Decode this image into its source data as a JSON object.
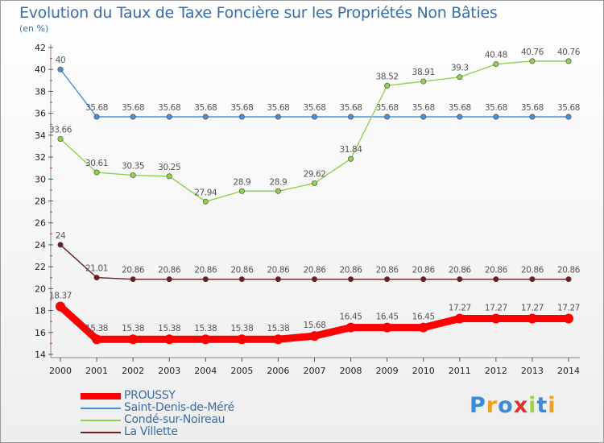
{
  "chart_data": {
    "type": "line",
    "title": "Evolution du Taux de Taxe Foncière sur les Propriétés Non Bâties",
    "ylabel": "(en %)",
    "xlabel": "",
    "x": [
      "2000",
      "2001",
      "2002",
      "2003",
      "2004",
      "2005",
      "2006",
      "2007",
      "2008",
      "2009",
      "2010",
      "2011",
      "2012",
      "2013",
      "2014"
    ],
    "ylim": [
      14,
      42
    ],
    "yticks": [
      "14",
      "16",
      "18",
      "20",
      "22",
      "24",
      "26",
      "28",
      "30",
      "32",
      "34",
      "36",
      "38",
      "40",
      "42"
    ],
    "grid": false,
    "legend_position": "bottom-left",
    "series": [
      {
        "name": "PROUSSY",
        "color": "#ff0000",
        "values": [
          18.37,
          15.38,
          15.38,
          15.38,
          15.38,
          15.38,
          15.38,
          15.68,
          16.45,
          16.45,
          16.45,
          17.27,
          17.27,
          17.27,
          17.27
        ],
        "labels": [
          "18.37",
          "15.38",
          "15.38",
          "15.38",
          "15.38",
          "15.38",
          "15.38",
          "15.68",
          "16.45",
          "16.45",
          "16.45",
          "17.27",
          "17.27",
          "17.27",
          "17.27"
        ]
      },
      {
        "name": "Saint-Denis-de-Méré",
        "color": "#4a90d9",
        "values": [
          40,
          35.68,
          35.68,
          35.68,
          35.68,
          35.68,
          35.68,
          35.68,
          35.68,
          35.68,
          35.68,
          35.68,
          35.68,
          35.68,
          35.68
        ],
        "labels": [
          "40",
          "35.68",
          "35.68",
          "35.68",
          "35.68",
          "35.68",
          "35.68",
          "35.68",
          "35.68",
          "35.68",
          "35.68",
          "35.68",
          "35.68",
          "35.68",
          "35.68"
        ]
      },
      {
        "name": "Condé-sur-Noireau",
        "color": "#8fd14f",
        "values": [
          33.66,
          30.61,
          30.35,
          30.25,
          27.94,
          28.9,
          28.9,
          29.62,
          31.84,
          38.52,
          38.91,
          39.3,
          40.48,
          40.76,
          40.76
        ],
        "labels": [
          "33.66",
          "30.61",
          "30.35",
          "30.25",
          "27.94",
          "28.9",
          "28.9",
          "29.62",
          "31.84",
          "38.52",
          "38.91",
          "39.3",
          "40.48",
          "40.76",
          "40.76"
        ]
      },
      {
        "name": "La Villette",
        "color": "#6b1f1f",
        "values": [
          24,
          21.01,
          20.86,
          20.86,
          20.86,
          20.86,
          20.86,
          20.86,
          20.86,
          20.86,
          20.86,
          20.86,
          20.86,
          20.86,
          20.86
        ],
        "labels": [
          "24",
          "21.01",
          "20.86",
          "20.86",
          "20.86",
          "20.86",
          "20.86",
          "20.86",
          "20.86",
          "20.86",
          "20.86",
          "20.86",
          "20.86",
          "20.86",
          "20.86"
        ]
      }
    ]
  },
  "logo": {
    "text": "Proxiti",
    "letters": [
      "P",
      "r",
      "o",
      "x",
      "i",
      "t",
      "i"
    ],
    "colors": [
      "#3a8dde",
      "#f0a020",
      "#3a8dde",
      "#e03030",
      "#9fd04a",
      "#3a8dde",
      "#f0a020"
    ]
  }
}
